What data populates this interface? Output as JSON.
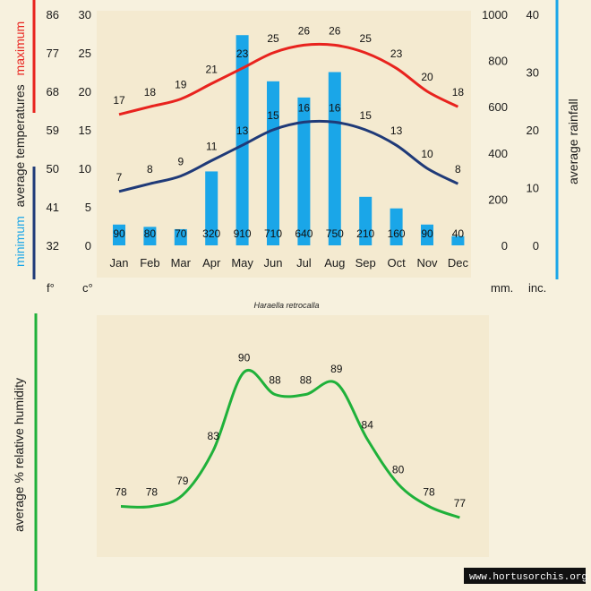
{
  "chart_data": [
    {
      "type": "bar+line",
      "months": [
        "Jan",
        "Feb",
        "Mar",
        "Apr",
        "May",
        "Jun",
        "Jul",
        "Aug",
        "Sep",
        "Oct",
        "Nov",
        "Dec"
      ],
      "temperature_c": {
        "maximum": [
          17,
          18,
          19,
          21,
          23,
          25,
          26,
          26,
          25,
          23,
          20,
          18
        ],
        "minimum": [
          7,
          8,
          9,
          11,
          13,
          15,
          16,
          16,
          15,
          13,
          10,
          8
        ]
      },
      "rainfall_mm": [
        90,
        80,
        70,
        320,
        910,
        710,
        640,
        750,
        210,
        160,
        90,
        40
      ],
      "left_axis_f": [
        "86",
        "77",
        "68",
        "59",
        "50",
        "41",
        "32"
      ],
      "left_axis_c": [
        "30",
        "25",
        "20",
        "15",
        "10",
        "5",
        "0"
      ],
      "right_axis_mm": [
        "1000",
        "800",
        "600",
        "400",
        "200",
        "0"
      ],
      "right_axis_in": [
        "40",
        "30",
        "20",
        "10",
        "0"
      ],
      "ylim_c": [
        0,
        30
      ],
      "ylim_mm": [
        0,
        1000
      ],
      "colors": {
        "maximum": "#e8231e",
        "minimum": "#1f3a78",
        "rainfall": "#1aa6e8"
      }
    },
    {
      "type": "line",
      "months": [
        "Jan",
        "Feb",
        "Mar",
        "Apr",
        "May",
        "Jun",
        "Jul",
        "Aug",
        "Sep",
        "Oct",
        "Nov",
        "Dec"
      ],
      "humidity_pct": [
        78,
        78,
        79,
        83,
        90,
        88,
        88,
        89,
        84,
        80,
        78,
        77
      ],
      "colors": {
        "humidity": "#1fb13a"
      }
    }
  ],
  "labels": {
    "y_left_word1": "minimum",
    "y_left_word2": "average temperatures",
    "y_left_word3": "maximum",
    "y_right": "average rainfall",
    "unit_f": "f°",
    "unit_c": "c°",
    "unit_mm": "mm.",
    "unit_in": "inc.",
    "species": "Haraella retrocalla",
    "humidity_axis": "average %  relative humidity",
    "watermark": "www.hortusorchis.org"
  },
  "colors": {
    "background": "#f7f1de",
    "panel": "#f5ecd0",
    "humidity_bar": "#1fb13a"
  }
}
